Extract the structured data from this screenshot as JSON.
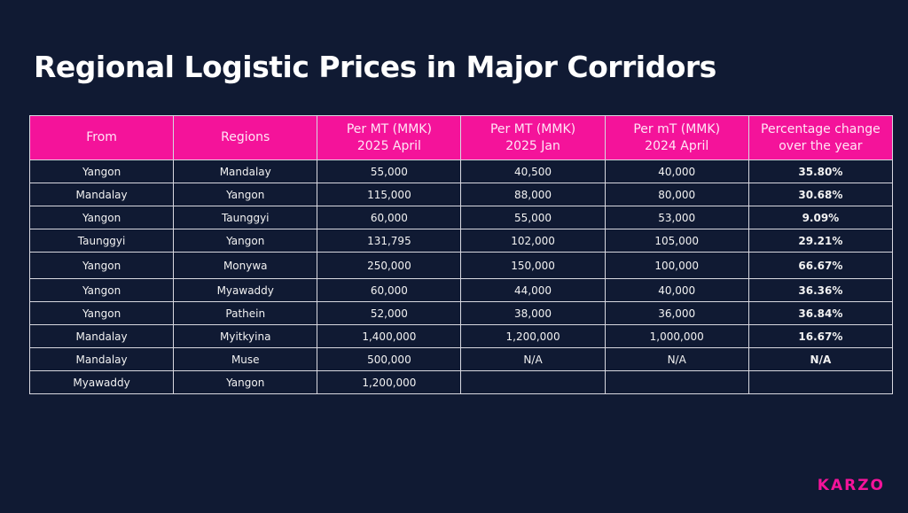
{
  "title": "Regional Logistic Prices in Major Corridors",
  "headers": [
    "From",
    "Regions",
    "Per MT (MMK)\n2025 April",
    "Per MT (MMK)\n2025 Jan",
    "Per mT (MMK)\n2024 April",
    "Percentage change\nover the year"
  ],
  "rows": [
    [
      "Yangon",
      "Mandalay",
      "55,000",
      "40,500",
      "40,000",
      "35.80%"
    ],
    [
      "Mandalay",
      "Yangon",
      "115,000",
      "88,000",
      "80,000",
      "30.68%"
    ],
    [
      "Yangon",
      "Taunggyi",
      "60,000",
      "55,000",
      "53,000",
      "9.09%"
    ],
    [
      "Taunggyi",
      "Yangon",
      "131,795",
      "102,000",
      "105,000",
      "29.21%"
    ],
    [
      "Yangon",
      "Monywa",
      "250,000",
      "150,000",
      "100,000",
      "66.67%"
    ],
    [
      "Yangon",
      "Myawaddy",
      "60,000",
      "44,000",
      "40,000",
      "36.36%"
    ],
    [
      "Yangon",
      "Pathein",
      "52,000",
      "38,000",
      "36,000",
      "36.84%"
    ],
    [
      "Mandalay",
      "Myitkyina",
      "1,400,000",
      "1,200,000",
      "1,000,000",
      "16.67%"
    ],
    [
      "Mandalay",
      "Muse",
      "500,000",
      "N/A",
      "N/A",
      "N/A"
    ],
    [
      "Myawaddy",
      "Yangon",
      "1,200,000",
      "",
      "",
      ""
    ]
  ],
  "logo": "KARZO",
  "colors": {
    "background": "#101a33",
    "accent": "#f4139a"
  }
}
